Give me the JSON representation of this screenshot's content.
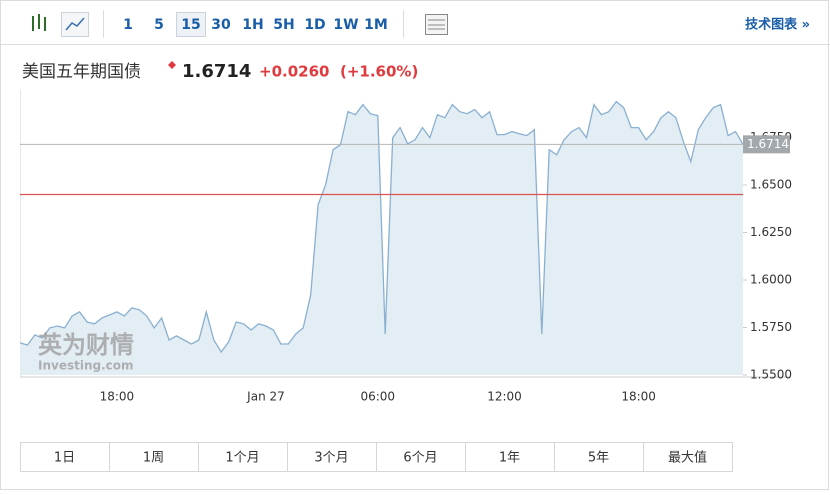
{
  "toolbar": {
    "intervals": [
      "1",
      "5",
      "15",
      "30",
      "1H",
      "5H",
      "1D",
      "1W",
      "1M"
    ],
    "selected": 2,
    "tech_chart_link": "技术图表 »"
  },
  "header": {
    "name": "美国五年期国债",
    "price": 1.6714,
    "change": "+0.0260",
    "change_pct": "(+1.60%)"
  },
  "watermark": {
    "brand": "英为财情",
    "site": "Investing.com"
  },
  "chart_data": {
    "type": "area",
    "color": "#8ab0d0",
    "fill": "#e3edf4",
    "categories": [
      null,
      null,
      null,
      null,
      null,
      null,
      null,
      null,
      null,
      null,
      null,
      null,
      null,
      "18:00",
      null,
      null,
      null,
      null,
      null,
      null,
      null,
      null,
      null,
      null,
      null,
      null,
      null,
      null,
      null,
      null,
      null,
      null,
      null,
      "Jan 27",
      null,
      null,
      null,
      null,
      null,
      null,
      null,
      null,
      null,
      null,
      null,
      null,
      null,
      null,
      "06:00",
      null,
      null,
      null,
      null,
      null,
      null,
      null,
      null,
      null,
      null,
      null,
      null,
      null,
      null,
      null,
      null,
      "12:00",
      null,
      null,
      null,
      null,
      null,
      null,
      null,
      null,
      null,
      null,
      null,
      null,
      null,
      null,
      null,
      null,
      null,
      "18:00",
      null,
      null,
      null,
      null,
      null,
      null,
      null,
      null,
      null,
      null,
      null,
      null,
      null,
      null
    ],
    "values": [
      1.5669,
      1.5658,
      1.5711,
      1.5695,
      1.5748,
      1.5758,
      1.5748,
      1.5811,
      1.5832,
      1.5779,
      1.5769,
      1.58,
      1.5816,
      1.5832,
      1.5811,
      1.5853,
      1.5843,
      1.5811,
      1.5748,
      1.58,
      1.5684,
      1.5706,
      1.5684,
      1.5663,
      1.5684,
      1.5832,
      1.5684,
      1.5621,
      1.5674,
      1.5779,
      1.5769,
      1.5737,
      1.5769,
      1.5758,
      1.5737,
      1.5663,
      1.5663,
      1.5716,
      1.5748,
      1.5922,
      1.6396,
      1.6501,
      1.6686,
      1.6712,
      1.6886,
      1.687,
      1.6923,
      1.6875,
      1.6865,
      1.5716,
      1.6749,
      1.6802,
      1.6717,
      1.6738,
      1.6802,
      1.6749,
      1.687,
      1.6854,
      1.6923,
      1.6886,
      1.6875,
      1.6897,
      1.6854,
      1.6886,
      1.6765,
      1.6765,
      1.6781,
      1.677,
      1.676,
      1.6791,
      1.5716,
      1.6686,
      1.6659,
      1.6738,
      1.6781,
      1.6802,
      1.6749,
      1.6923,
      1.687,
      1.6886,
      1.6939,
      1.6907,
      1.6802,
      1.6802,
      1.6738,
      1.6781,
      1.6854,
      1.6886,
      1.6854,
      1.6728,
      1.6623,
      1.6791,
      1.6854,
      1.6907,
      1.6923,
      1.676,
      1.6781,
      1.6714
    ],
    "ylim": [
      1.55,
      1.7
    ],
    "yticks": [
      {
        "value": 1.55,
        "label": "1.5500"
      },
      {
        "value": 1.575,
        "label": "1.5750"
      },
      {
        "value": 1.6,
        "label": "1.6000"
      },
      {
        "value": 1.625,
        "label": "1.6250"
      },
      {
        "value": 1.65,
        "label": "1.6500"
      },
      {
        "value": 1.675,
        "label": "1.6750"
      }
    ],
    "grid": false,
    "last_value": 1.6714,
    "reference_line": {
      "value": 1.645,
      "color": "#d9534f"
    }
  },
  "ranges": [
    "1日",
    "1周",
    "1个月",
    "3个月",
    "6个月",
    "1年",
    "5年",
    "最大值"
  ]
}
